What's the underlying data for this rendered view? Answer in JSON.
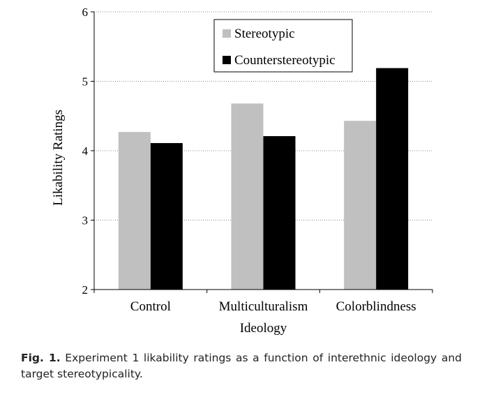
{
  "chart_data": {
    "type": "bar",
    "categories": [
      "Control",
      "Multiculturalism",
      "Colorblindness"
    ],
    "series": [
      {
        "name": "Stereotypic",
        "values": [
          4.27,
          4.68,
          4.43
        ],
        "color": "#c0c0c0"
      },
      {
        "name": "Counterstereotypic",
        "values": [
          4.11,
          4.21,
          5.19
        ],
        "color": "#000000"
      }
    ],
    "ylim": [
      2,
      6
    ],
    "yticks": [
      "2",
      "3",
      "4",
      "5",
      "6"
    ],
    "xlabel": "Ideology",
    "ylabel": "Likability Ratings",
    "grid": "horizontal dotted",
    "legend_placement": "top-center"
  },
  "caption": {
    "label": "Fig. 1.",
    "text": "Experiment 1 likability ratings as a function of interethnic ideology and target stereotypicality."
  }
}
